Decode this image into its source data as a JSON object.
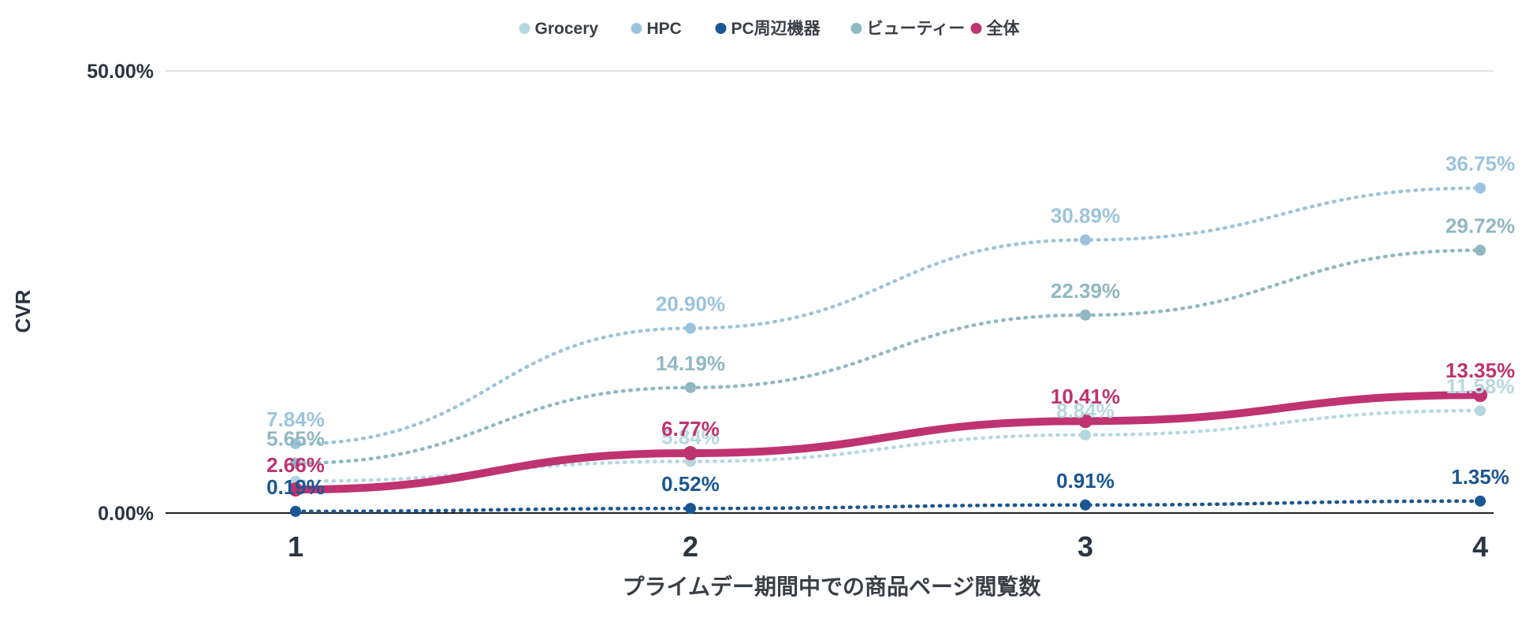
{
  "chart_data": {
    "type": "line",
    "title": "",
    "xlabel": "プライムデー期間中での商品ページ閲覧数",
    "ylabel": "CVR",
    "x": [
      1,
      2,
      3,
      4
    ],
    "x_tick_labels": [
      "1",
      "2",
      "3",
      "4"
    ],
    "ylim": [
      0,
      50
    ],
    "y_tick_labels": [
      "0.00%",
      "50.00%"
    ],
    "grid": true,
    "legend_position": "top",
    "series": [
      {
        "name": "Grocery",
        "values": [
          3.6,
          5.84,
          8.84,
          11.58
        ],
        "labels": [
          "",
          "5.84%",
          "8.84%",
          "11.58%"
        ],
        "color": "#b5d8e0",
        "style": "dotted"
      },
      {
        "name": "HPC",
        "values": [
          7.84,
          20.9,
          30.89,
          36.75
        ],
        "labels": [
          "7.84%",
          "20.90%",
          "30.89%",
          "36.75%"
        ],
        "color": "#9cc3dd",
        "style": "dotted"
      },
      {
        "name": "PC周辺機器",
        "values": [
          0.19,
          0.52,
          0.91,
          1.35
        ],
        "labels": [
          "0.19%",
          "0.52%",
          "0.91%",
          "1.35%"
        ],
        "color": "#1a5693",
        "style": "dotted"
      },
      {
        "name": "ビューティー",
        "values": [
          5.65,
          14.19,
          22.39,
          29.72
        ],
        "labels": [
          "5.65%",
          "14.19%",
          "22.39%",
          "29.72%"
        ],
        "color": "#8fb8c2",
        "style": "dotted"
      },
      {
        "name": "全体",
        "values": [
          2.66,
          6.77,
          10.41,
          13.35
        ],
        "labels": [
          "2.66%",
          "6.77%",
          "10.41%",
          "13.35%"
        ],
        "color": "#bf3370",
        "style": "solid"
      }
    ]
  }
}
